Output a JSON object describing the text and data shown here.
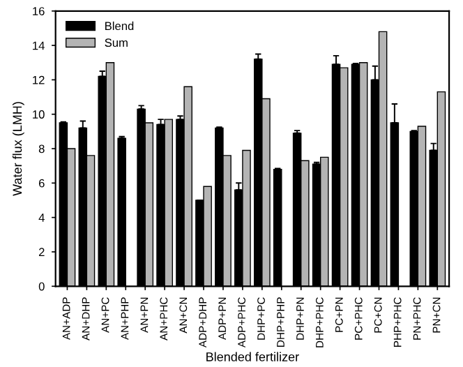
{
  "chart_data": {
    "type": "bar",
    "xlabel": "Blended fertilizer",
    "ylabel": "Water flux (LMH)",
    "categories": [
      "AN+ADP",
      "AN+DHP",
      "AN+PC",
      "AN+PHP",
      "AN+PN",
      "AN+PHC",
      "AN+CN",
      "ADP+DHP",
      "ADP+PN",
      "ADP+PHC",
      "DHP+PC",
      "DHP+PHP",
      "DHP+PN",
      "DHP+PHC",
      "PC+PN",
      "PC+PHC",
      "PC+CN",
      "PHP+PHC",
      "PN+PHC",
      "PN+CN"
    ],
    "series": [
      {
        "name": "Blend",
        "color": "#000000",
        "values": [
          9.5,
          9.2,
          12.2,
          8.6,
          10.3,
          9.4,
          9.7,
          5.0,
          9.2,
          5.6,
          13.2,
          6.8,
          8.9,
          7.1,
          12.9,
          12.9,
          12.0,
          9.5,
          9.0,
          7.9
        ],
        "errors": [
          0.05,
          0.4,
          0.3,
          0.1,
          0.2,
          0.3,
          0.2,
          null,
          0.05,
          0.4,
          0.3,
          0.05,
          0.15,
          0.1,
          0.5,
          0.05,
          0.8,
          1.1,
          0.05,
          0.4
        ]
      },
      {
        "name": "Sum",
        "color": "#b4b4b4",
        "values": [
          8.0,
          7.6,
          13.0,
          null,
          9.5,
          9.7,
          11.6,
          5.8,
          7.6,
          7.9,
          10.9,
          null,
          7.3,
          7.5,
          12.7,
          13.0,
          14.8,
          null,
          9.3,
          11.3
        ]
      }
    ],
    "ylim": [
      0,
      16
    ],
    "yticks": [
      0,
      2,
      4,
      6,
      8,
      10,
      12,
      14,
      16
    ],
    "grid": false,
    "legend": "top left"
  }
}
